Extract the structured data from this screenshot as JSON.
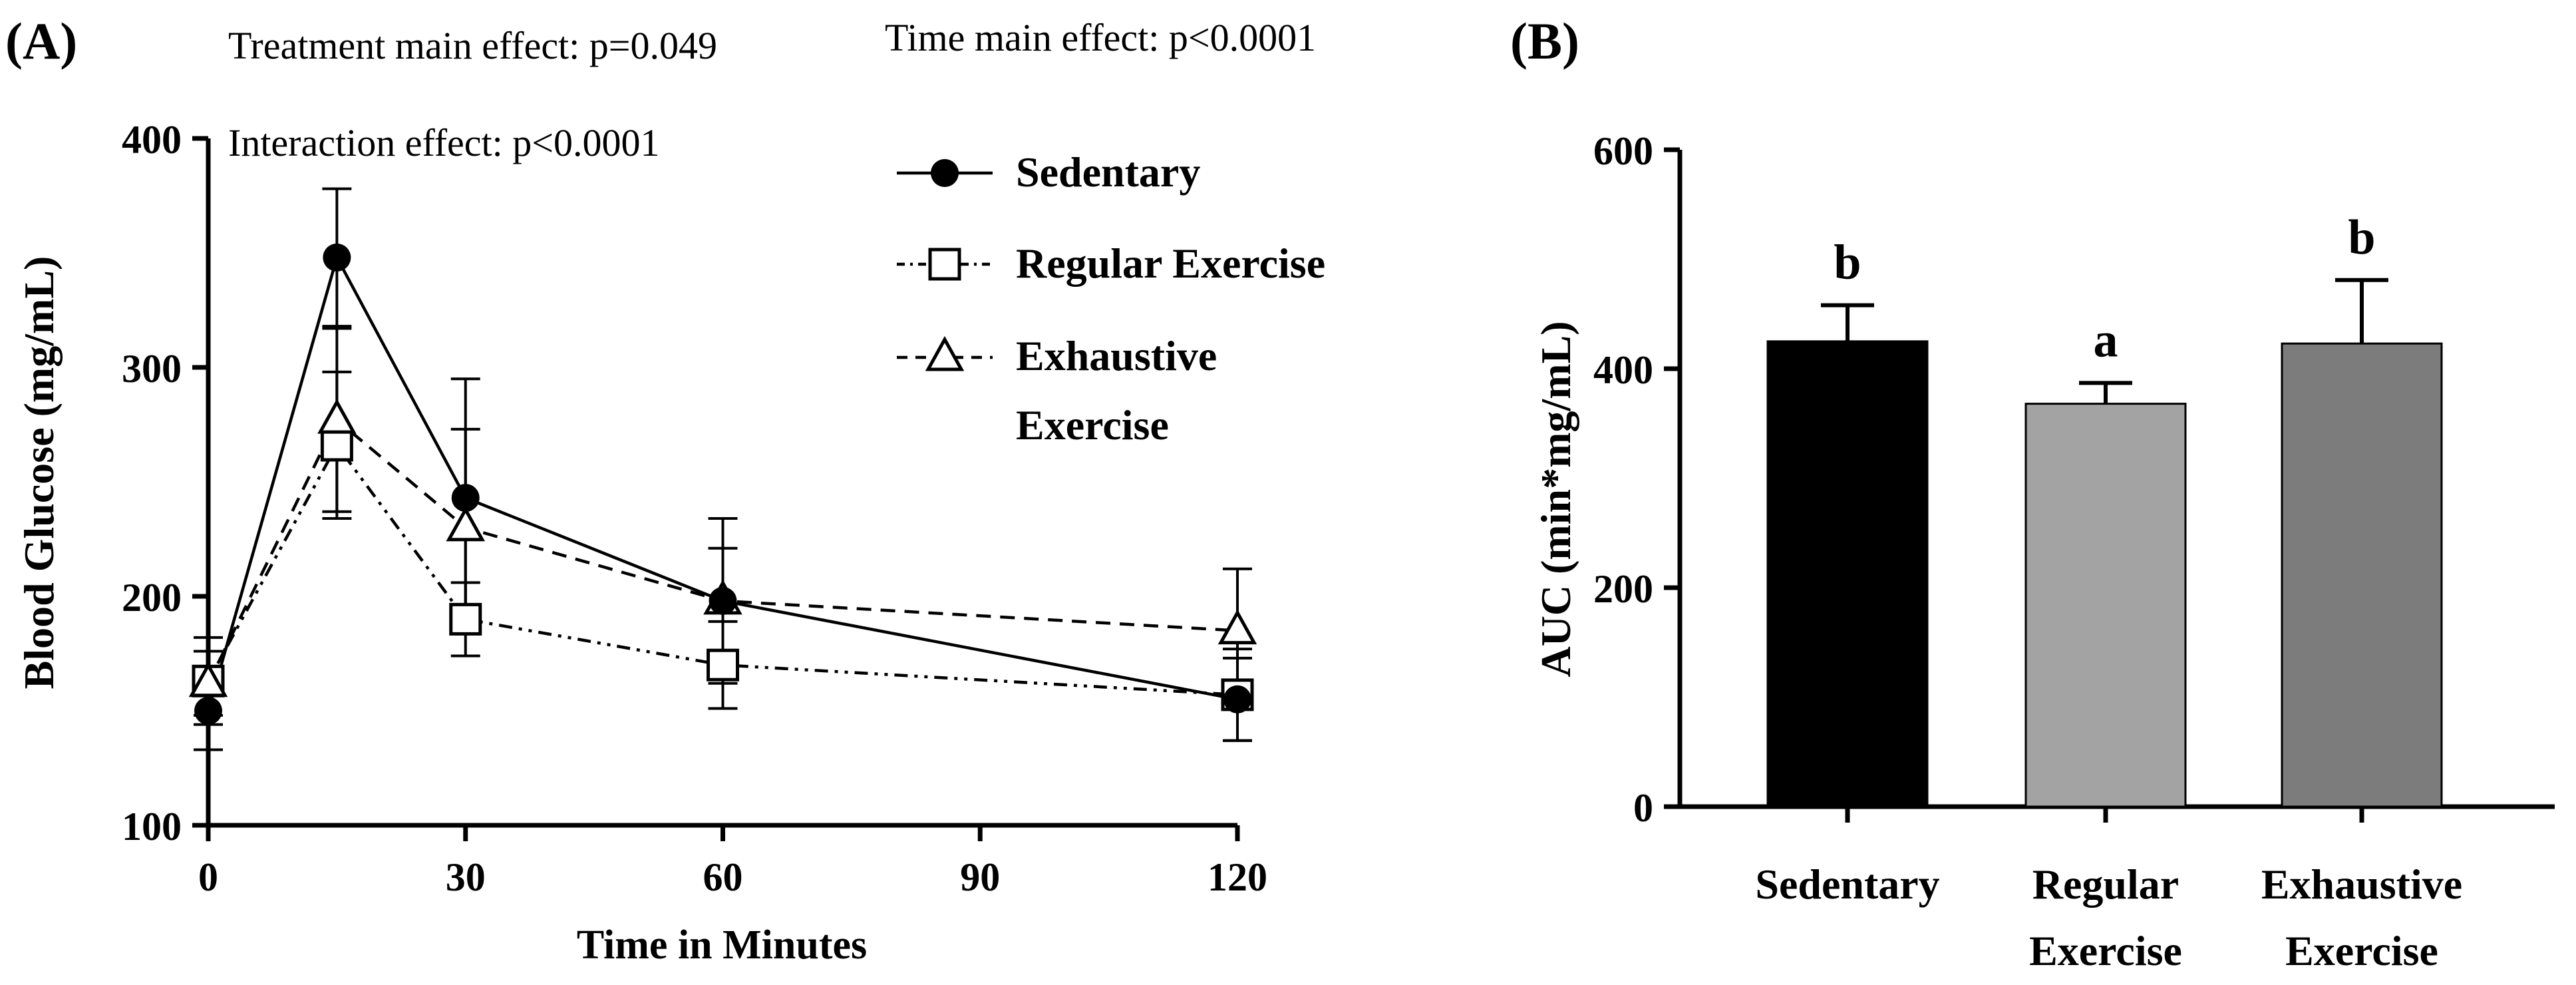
{
  "chart_data": [
    {
      "panel": "(A)",
      "type": "line",
      "xlabel": "Time in Minutes",
      "ylabel": "Blood Glucose (mg/mL)",
      "xlim": [
        0,
        120
      ],
      "ylim": [
        100,
        400
      ],
      "xticks": [
        0,
        30,
        60,
        90,
        120
      ],
      "yticks": [
        100,
        200,
        300,
        400
      ],
      "annotations": {
        "treatment": "Treatment main effect: p=0.049",
        "time": "Time main effect: p<0.0001",
        "interaction": "Interaction effect: p<0.0001"
      },
      "series": [
        {
          "name": "Sedentary",
          "marker": "filled-circle",
          "line": "solid",
          "x": [
            0,
            15,
            30,
            60,
            120
          ],
          "values": [
            150,
            348,
            243,
            198,
            155
          ],
          "errors": [
            17,
            30,
            52,
            36,
            18
          ]
        },
        {
          "name": "Regular Exercise",
          "marker": "open-square",
          "line": "dash-dot-dot",
          "x": [
            0,
            15,
            30,
            60,
            120
          ],
          "values": [
            163,
            266,
            190,
            170,
            157
          ],
          "errors": [
            19,
            32,
            16,
            19,
            20
          ]
        },
        {
          "name": "Exhaustive Exercise",
          "marker": "open-triangle",
          "line": "dashed",
          "x": [
            0,
            15,
            30,
            60,
            120
          ],
          "values": [
            162,
            277,
            230,
            198,
            185
          ],
          "errors": [
            14,
            40,
            43,
            23,
            27
          ]
        }
      ],
      "legend": [
        "Sedentary",
        "Regular Exercise",
        "Exhaustive",
        "Exercise"
      ]
    },
    {
      "panel": "(B)",
      "type": "bar",
      "ylabel": "AUC (min*mg/mL)",
      "ylim": [
        0,
        600
      ],
      "yticks": [
        0,
        200,
        400,
        600
      ],
      "categories": [
        [
          "Sedentary"
        ],
        [
          "Regular",
          "Exercise"
        ],
        [
          "Exhaustive",
          "Exercise"
        ]
      ],
      "values": [
        425,
        368,
        423
      ],
      "errors": [
        33,
        19,
        58
      ],
      "letters": [
        "b",
        "a",
        "b"
      ],
      "colors": [
        "#000000",
        "#a3a3a3",
        "#7c7c7c"
      ]
    }
  ]
}
